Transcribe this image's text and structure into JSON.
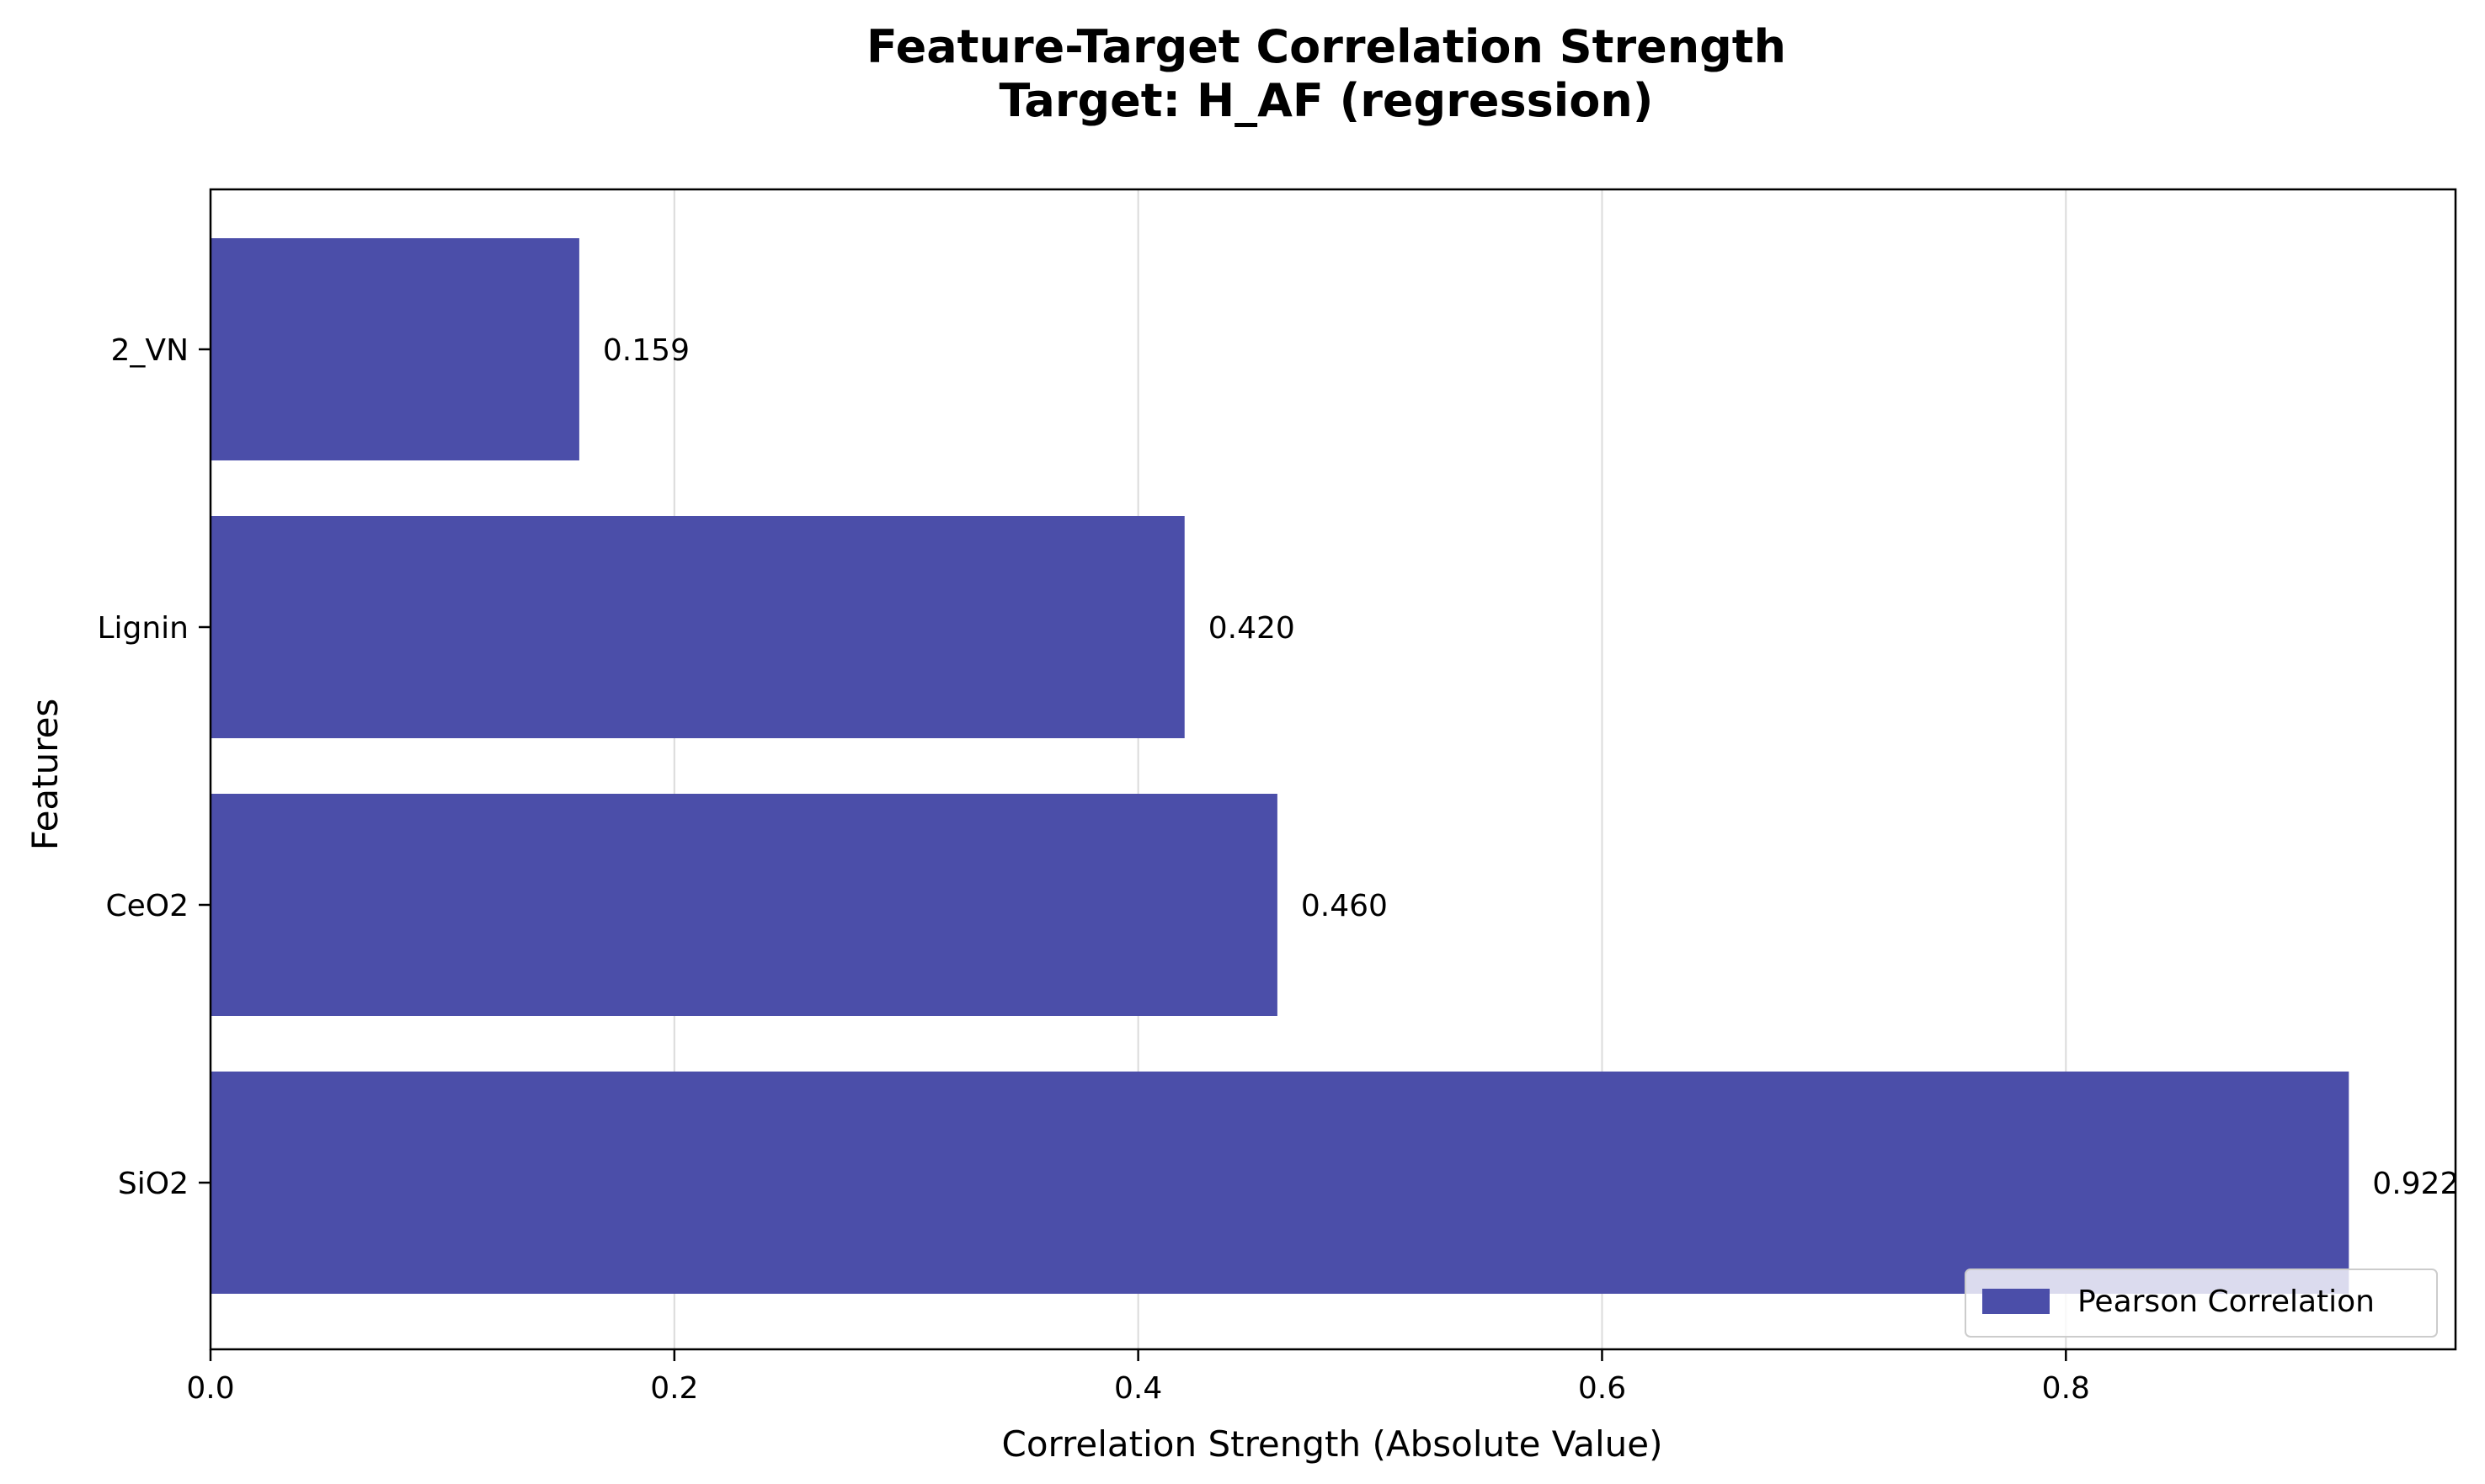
{
  "chart_data": {
    "type": "bar",
    "orientation": "horizontal",
    "title": "Feature-Target Correlation Strength",
    "subtitle": "Target: H_AF (regression)",
    "xlabel": "Correlation Strength (Absolute Value)",
    "ylabel": "Features",
    "categories": [
      "2_VN",
      "Lignin",
      "CeO2",
      "SiO2"
    ],
    "series": [
      {
        "name": "Pearson Correlation",
        "values": [
          0.159,
          0.42,
          0.46,
          0.922
        ],
        "color": "#4b4ea9"
      }
    ],
    "value_labels": [
      "0.159",
      "0.420",
      "0.460",
      "0.922"
    ],
    "xlim": [
      0.0,
      0.968
    ],
    "xticks": [
      0.0,
      0.2,
      0.4,
      0.6,
      0.8
    ],
    "xtick_labels": [
      "0.0",
      "0.2",
      "0.4",
      "0.6",
      "0.8"
    ],
    "grid": "x",
    "legend_position": "lower-right"
  }
}
